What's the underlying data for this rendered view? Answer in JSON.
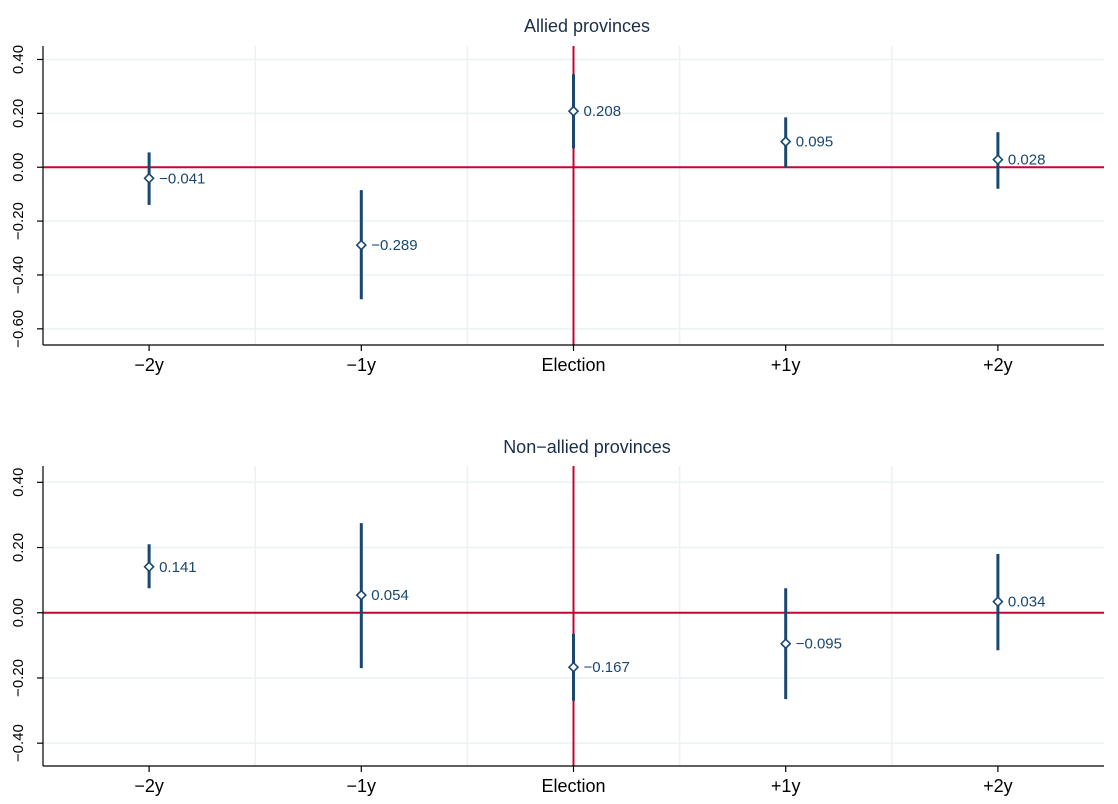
{
  "chart_data": [
    {
      "type": "scatter",
      "title": "Allied provinces",
      "xlabel": "",
      "ylabel": "",
      "categories": [
        "−2y",
        "−1y",
        "Election",
        "+1y",
        "+2y"
      ],
      "values": [
        -0.041,
        -0.289,
        0.208,
        0.095,
        0.028
      ],
      "value_labels": [
        "−0.041",
        "−0.289",
        "0.208",
        "0.095",
        "0.028"
      ],
      "ci_low": [
        -0.14,
        -0.49,
        0.07,
        0.0,
        -0.08
      ],
      "ci_high": [
        0.055,
        -0.085,
        0.345,
        0.185,
        0.13
      ],
      "ylim": [
        -0.66,
        0.45
      ],
      "yticks": [
        0.4,
        0.2,
        0.0,
        -0.2,
        -0.4,
        -0.6
      ],
      "ytick_labels": [
        "0.40",
        "0.20",
        "0.00",
        "−0.20",
        "−0.40",
        "−0.60"
      ],
      "reference_lines": {
        "horizontal": 0,
        "vertical_category": "Election"
      },
      "grid": true
    },
    {
      "type": "scatter",
      "title": "Non−allied provinces",
      "xlabel": "",
      "ylabel": "",
      "categories": [
        "−2y",
        "−1y",
        "Election",
        "+1y",
        "+2y"
      ],
      "values": [
        0.141,
        0.054,
        -0.167,
        -0.095,
        0.034
      ],
      "value_labels": [
        "0.141",
        "0.054",
        "−0.167",
        "−0.095",
        "0.034"
      ],
      "ci_low": [
        0.075,
        -0.17,
        -0.27,
        -0.265,
        -0.115
      ],
      "ci_high": [
        0.21,
        0.275,
        -0.065,
        0.075,
        0.18
      ],
      "ylim": [
        -0.47,
        0.45
      ],
      "yticks": [
        0.4,
        0.2,
        0.0,
        -0.2,
        -0.4
      ],
      "ytick_labels": [
        "0.40",
        "0.20",
        "0.00",
        "−0.20",
        "−0.40"
      ],
      "reference_lines": {
        "horizontal": 0,
        "vertical_category": "Election"
      },
      "grid": true
    }
  ],
  "colors": {
    "point": "#1a476f",
    "reference_line": "#c10534",
    "grid": "#eaf2f3",
    "axis": "#000000",
    "title": "#1a2e4a"
  }
}
